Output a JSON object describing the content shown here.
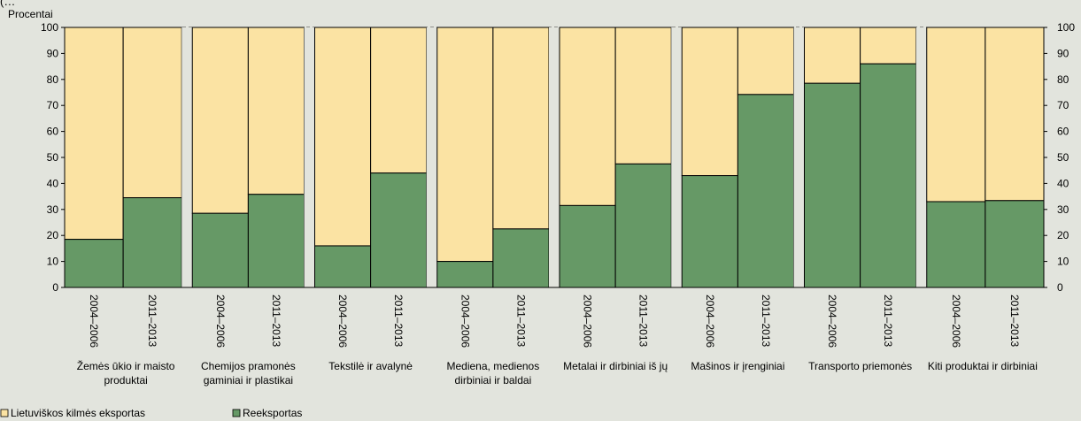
{
  "chart_data": {
    "type": "bar",
    "stacked": true,
    "top_note": "(…",
    "y_unit_label": "Procentai",
    "ylim": [
      0,
      100
    ],
    "yticks": [
      0,
      10,
      20,
      30,
      40,
      50,
      60,
      70,
      80,
      90,
      100
    ],
    "grid": "dashed horizontal",
    "legend_position": "bottom-left",
    "groups": [
      {
        "label_lines": [
          "Žemės ūkio ir maisto",
          "produktai"
        ],
        "periods": [
          "2004–2006",
          "2011–2013"
        ]
      },
      {
        "label_lines": [
          "Chemijos pramonės",
          "gaminiai ir plastikai"
        ],
        "periods": [
          "2004–2006",
          "2011–2013"
        ]
      },
      {
        "label_lines": [
          "Tekstilė ir avalynė"
        ],
        "periods": [
          "2004–2006",
          "2011–2013"
        ]
      },
      {
        "label_lines": [
          "Mediena, medienos",
          "dirbiniai ir baldai"
        ],
        "periods": [
          "2004–2006",
          "2011–2013"
        ]
      },
      {
        "label_lines": [
          "Metalai ir dirbiniai iš jų"
        ],
        "periods": [
          "2004–2006",
          "2011–2013"
        ]
      },
      {
        "label_lines": [
          "Mašinos ir įrenginiai"
        ],
        "periods": [
          "2004–2006",
          "2011–2013"
        ]
      },
      {
        "label_lines": [
          "Transporto priemonės"
        ],
        "periods": [
          "2004–2006",
          "2011–2013"
        ]
      },
      {
        "label_lines": [
          "Kiti produktai ir dirbiniai"
        ],
        "periods": [
          "2004–2006",
          "2011–2013"
        ]
      }
    ],
    "series": [
      {
        "name": "Lietuviškos kilmės eksportas",
        "color": "#fbe3a3",
        "values": [
          81.5,
          65.5,
          71.5,
          64.2,
          84,
          56,
          90,
          77.5,
          68.5,
          52.5,
          57,
          25.8,
          21.5,
          14,
          67,
          66.6
        ]
      },
      {
        "name": "Reeksportas",
        "color": "#669966",
        "values": [
          18.5,
          34.5,
          28.5,
          35.8,
          16,
          44,
          10,
          22.5,
          31.5,
          47.5,
          43,
          74.2,
          78.5,
          86,
          33,
          33.4
        ]
      }
    ]
  }
}
